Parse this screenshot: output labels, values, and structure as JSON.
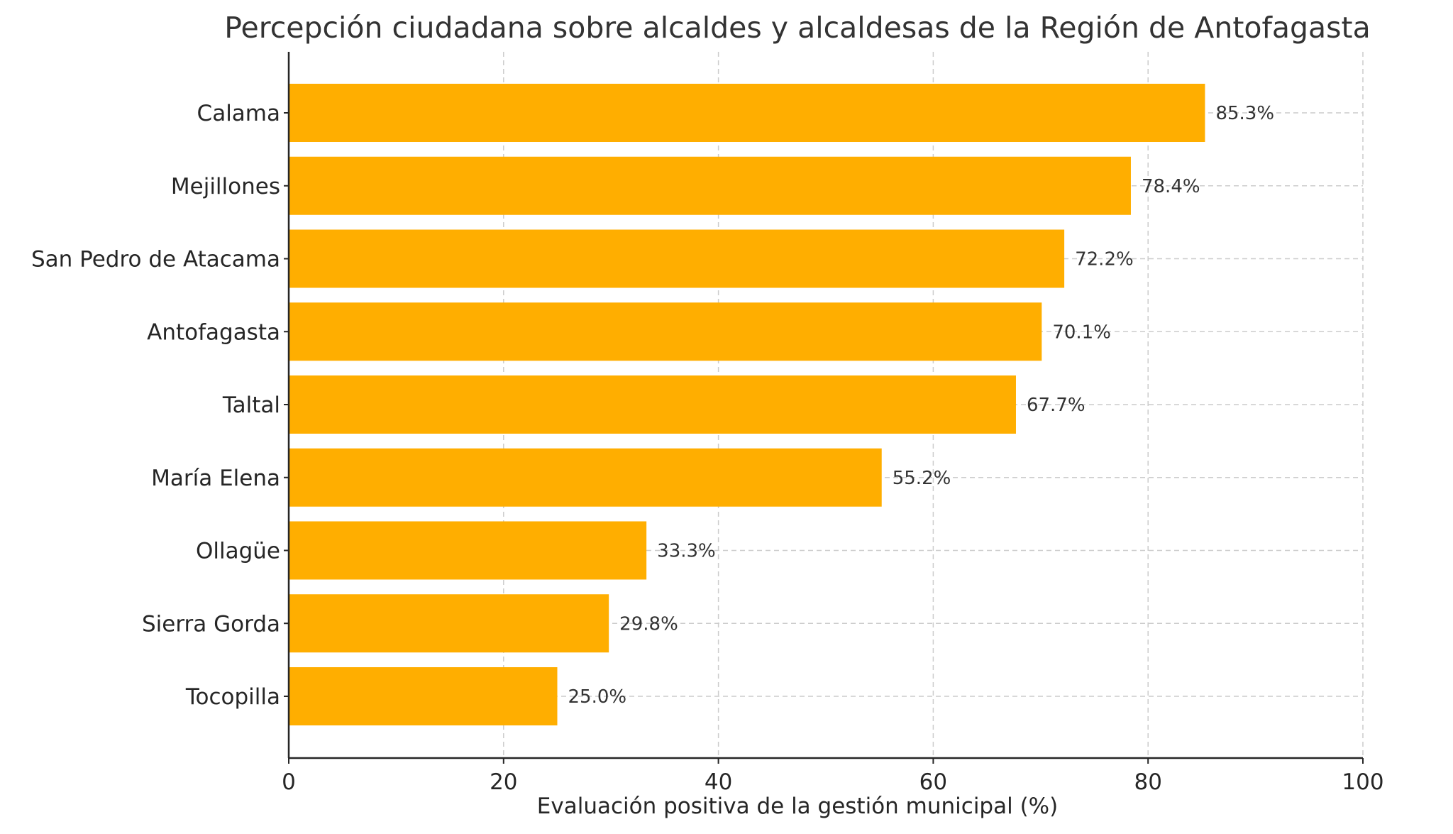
{
  "chart_data": {
    "type": "bar",
    "orientation": "horizontal",
    "title": "Percepción ciudadana sobre alcaldes y alcaldesas de la Región de Antofagasta",
    "xlabel": "Evaluación positiva de la gestión municipal (%)",
    "ylabel": "",
    "xlim": [
      0,
      100
    ],
    "xticks": [
      0,
      20,
      40,
      60,
      80,
      100
    ],
    "categories": [
      "Calama",
      "Mejillones",
      "San Pedro de Atacama",
      "Antofagasta",
      "Taltal",
      "María Elena",
      "Ollagüe",
      "Sierra Gorda",
      "Tocopilla"
    ],
    "values": [
      85.3,
      78.4,
      72.2,
      70.1,
      67.7,
      55.2,
      33.3,
      29.8,
      25.0
    ],
    "value_labels": [
      "85.3%",
      "78.4%",
      "72.2%",
      "70.1%",
      "67.7%",
      "55.2%",
      "33.3%",
      "29.8%",
      "25.0%"
    ],
    "grid": true,
    "bar_color": "#FFAE00"
  }
}
